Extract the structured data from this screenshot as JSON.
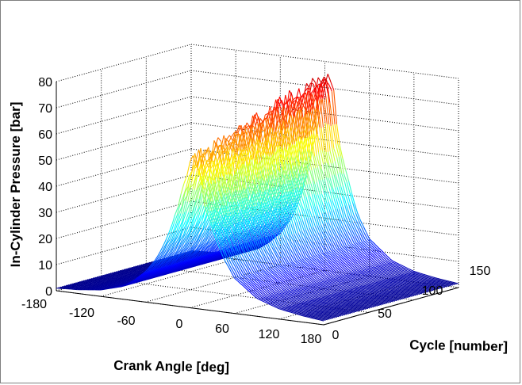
{
  "chart_data": {
    "type": "surface3d",
    "title": "",
    "xlabel": "Crank Angle [deg]",
    "ylabel": "Cycle [number]",
    "zlabel": "In-Cylinder Pressure [bar]",
    "x_ticks": [
      "-180",
      "-120",
      "-60",
      "0",
      "60",
      "120",
      "180"
    ],
    "y_ticks": [
      "0",
      "50",
      "100",
      "150"
    ],
    "z_ticks": [
      "0",
      "10",
      "20",
      "30",
      "40",
      "50",
      "60",
      "70",
      "80"
    ],
    "xlim": [
      -180,
      180
    ],
    "ylim": [
      0,
      150
    ],
    "zlim": [
      0,
      80
    ],
    "colormap": "jet",
    "grid": true,
    "surface": {
      "crank_angle_deg": [
        -180,
        -150,
        -120,
        -90,
        -75,
        -60,
        -45,
        -30,
        -20,
        -10,
        0,
        5,
        10,
        15,
        20,
        30,
        45,
        60,
        90,
        120,
        150,
        180
      ],
      "mean_pressure_bar": [
        1,
        1.5,
        2.5,
        5,
        8,
        12,
        18,
        28,
        38,
        52,
        65,
        70,
        66,
        56,
        46,
        35,
        22,
        14,
        7,
        4,
        2.5,
        1.5
      ],
      "cycles": [
        0,
        150
      ],
      "peak_pressure_bar_at_cycle_0": 57,
      "peak_pressure_bar_at_cycle_150": 77,
      "peak_crank_angle_deg": 5
    }
  }
}
